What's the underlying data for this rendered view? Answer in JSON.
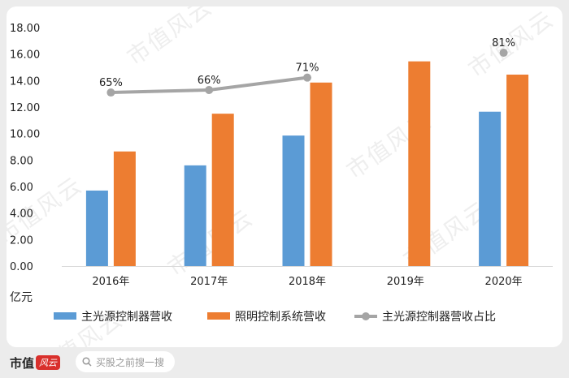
{
  "chart_data": {
    "type": "bar",
    "categories": [
      "2016年",
      "2017年",
      "2018年",
      "2019年",
      "2020年"
    ],
    "unit_label": "亿元",
    "ylim": [
      0,
      18
    ],
    "yticks": [
      "0.00",
      "2.00",
      "4.00",
      "6.00",
      "8.00",
      "10.00",
      "12.00",
      "14.00",
      "16.00",
      "18.00"
    ],
    "series": [
      {
        "name": "主光源控制器营收",
        "kind": "bar",
        "color": "#5b9bd5",
        "values": [
          5.7,
          7.6,
          9.85,
          null,
          11.65
        ]
      },
      {
        "name": "照明控制系统营收",
        "kind": "bar",
        "color": "#ed7d31",
        "values": [
          8.65,
          11.5,
          13.85,
          15.45,
          14.45
        ]
      },
      {
        "name": "主光源控制器营收占比",
        "kind": "line",
        "color": "#a5a5a5",
        "values": [
          0.65,
          0.66,
          0.71,
          null,
          0.81
        ],
        "labels": [
          "65%",
          "66%",
          "71%",
          "",
          "81%"
        ]
      }
    ],
    "grid": false,
    "legend_position": "bottom"
  },
  "watermark": "市值风云",
  "footer": {
    "brand": "市值",
    "brand_mark": "风云",
    "search_placeholder": "买股之前搜一搜",
    "search_icon": "search-icon"
  }
}
